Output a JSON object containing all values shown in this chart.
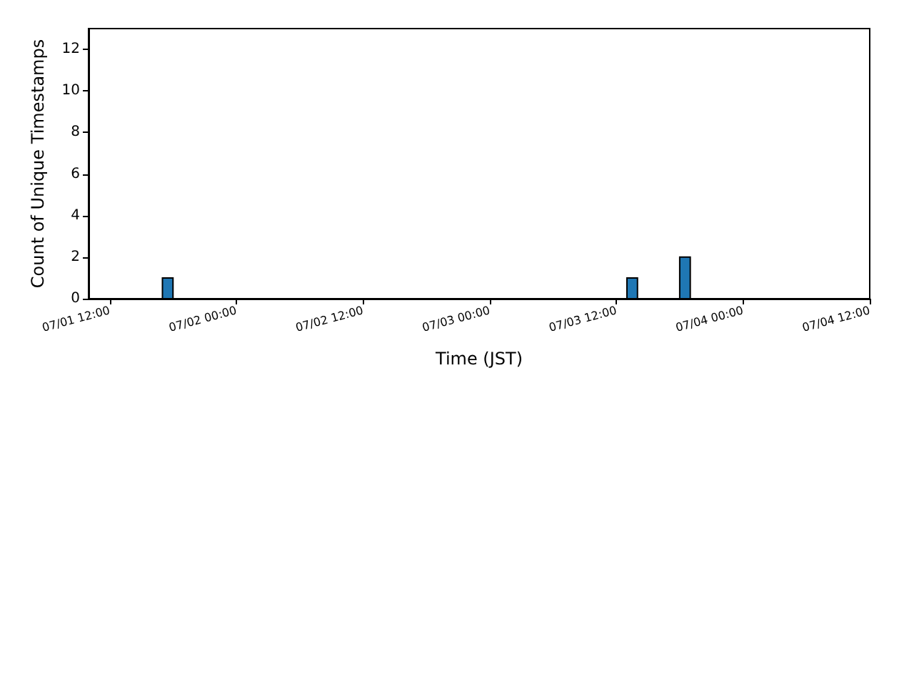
{
  "chart_data": {
    "type": "histogram",
    "xlabel": "Time (JST)",
    "ylabel": "Count of Unique Timestamps",
    "bins": [
      "--07-01T11:00",
      "--07-01T12:00",
      "--07-01T13:00",
      "--07-01T14:00",
      "--07-01T15:00",
      "--07-01T16:00",
      "--07-01T17:00",
      "--07-01T18:00",
      "--07-01T19:00",
      "--07-01T20:00",
      "--07-01T21:00",
      "--07-01T22:00",
      "--07-01T23:00",
      "--07-02T00:00",
      "--07-02T01:00",
      "--07-02T02:00",
      "--07-02T03:00",
      "--07-02T04:00",
      "--07-02T05:00",
      "--07-02T06:00",
      "--07-02T07:00",
      "--07-02T08:00",
      "--07-02T09:00",
      "--07-02T10:00",
      "--07-02T11:00",
      "--07-02T12:00",
      "--07-02T13:00",
      "--07-02T14:00",
      "--07-02T15:00",
      "--07-02T16:00",
      "--07-02T17:00",
      "--07-02T18:00",
      "--07-02T19:00",
      "--07-02T20:00",
      "--07-02T21:00",
      "--07-02T22:00",
      "--07-02T23:00",
      "--07-03T00:00",
      "--07-03T01:00",
      "--07-03T02:00",
      "--07-03T03:00",
      "--07-03T04:00",
      "--07-03T05:00",
      "--07-03T06:00",
      "--07-03T07:00",
      "--07-03T08:00",
      "--07-03T09:00",
      "--07-03T10:00",
      "--07-03T11:00",
      "--07-03T12:00",
      "--07-03T13:00",
      "--07-03T14:00",
      "--07-03T15:00",
      "--07-03T16:00",
      "--07-03T17:00",
      "--07-03T18:00",
      "--07-03T19:00",
      "--07-03T20:00",
      "--07-03T21:00",
      "--07-03T22:00",
      "--07-03T23:00",
      "--07-04T00:00",
      "--07-04T01:00",
      "--07-04T02:00",
      "--07-04T03:00",
      "--07-04T04:00",
      "--07-04T05:00",
      "--07-04T06:00",
      "--07-04T07:00",
      "--07-04T08:00",
      "--07-04T09:00",
      "--07-04T10:00"
    ],
    "values": [
      0,
      0,
      0,
      0,
      0,
      0,
      1,
      0,
      0,
      0,
      0,
      0,
      0,
      0,
      0,
      0,
      0,
      0,
      0,
      0,
      0,
      0,
      0,
      0,
      0,
      0,
      0,
      0,
      0,
      0,
      0,
      0,
      0,
      0,
      0,
      0,
      0,
      0,
      0,
      0,
      0,
      0,
      0,
      0,
      0,
      0,
      0,
      0,
      0,
      0,
      1,
      0,
      0,
      0,
      0,
      2,
      0,
      0,
      0,
      0,
      0,
      0,
      0,
      0,
      0,
      0,
      0,
      0,
      0,
      0,
      0
    ],
    "color": "#1f77b4",
    "xlim": [
      "--07-01T10:00",
      "--07-04T12:00"
    ],
    "xticks": [
      {
        "value": "--07-01T12:00",
        "label": "07/01 12:00"
      },
      {
        "value": "--07-02T00:00",
        "label": "07/02 00:00"
      },
      {
        "value": "--07-02T12:00",
        "label": "07/02 12:00"
      },
      {
        "value": "--07-03T00:00",
        "label": "07/03 00:00"
      },
      {
        "value": "--07-03T12:00",
        "label": "07/03 12:00"
      },
      {
        "value": "--07-04T00:00",
        "label": "07/04 00:00"
      },
      {
        "value": "--07-04T12:00",
        "label": "07/04 12:00"
      }
    ],
    "ylim": [
      0,
      13
    ],
    "yticks": [
      0,
      2,
      4,
      6,
      8,
      10,
      12
    ],
    "grid": false
  }
}
